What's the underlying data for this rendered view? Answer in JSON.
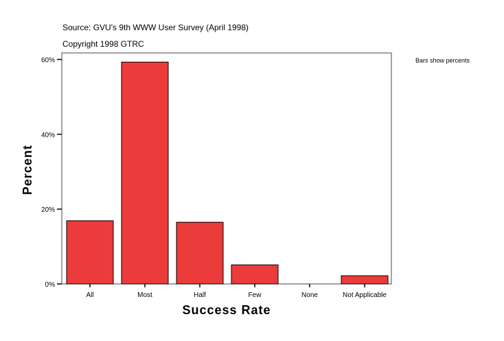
{
  "chart_data": {
    "type": "bar",
    "source": "Source: GVU's 9th WWW User Survey (April 1998)",
    "copyright": "Copyright 1998 GTRC",
    "note": "Bars show percents",
    "xlabel": "Success Rate",
    "ylabel": "Percent",
    "categories": [
      "All",
      "Most",
      "Half",
      "Few",
      "None",
      "Not Applicable"
    ],
    "values": [
      16.9,
      59.3,
      16.5,
      5.1,
      0,
      2.2
    ],
    "yticks": [
      0,
      20,
      40,
      60
    ],
    "ytick_labels": [
      "0%",
      "20%",
      "40%",
      "60%"
    ],
    "ylim": [
      0,
      61.5
    ],
    "grid": false,
    "bar_color": "#ec3b3b",
    "legend": "none"
  }
}
